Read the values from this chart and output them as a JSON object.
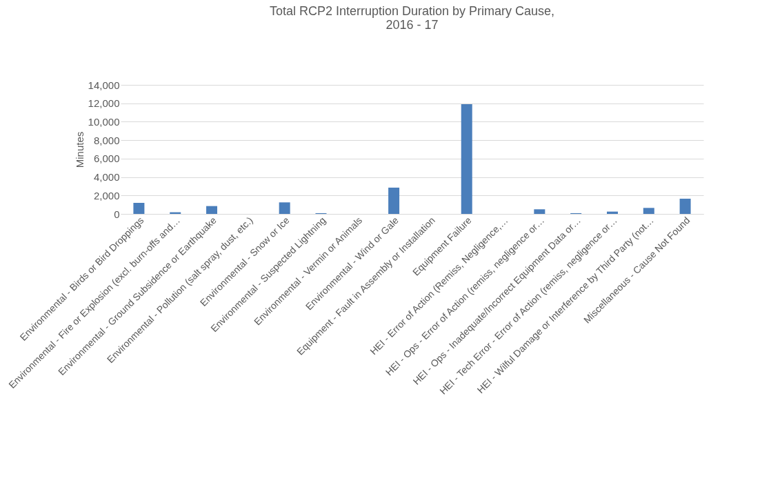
{
  "chart_data": {
    "type": "bar",
    "title": [
      "Total RCP2 Interruption Duration by Primary Cause,",
      "2016 - 17"
    ],
    "ylabel": "Minutes",
    "categories": [
      "Environmental - Birds or Bird Droppings",
      "Environmental - Fire or Explosion (excl. burn-offs and…",
      "Environmental - Ground Subsidence or Earthquake",
      "Environmental - Pollution  (salt spray, dust, etc.)",
      "Environmental - Snow or Ice",
      "Environmental - Suspected Lightning",
      "Environmental - Vermin or Animals",
      "Environmental - Wind or Gale",
      "Equipment - Fault in Assembly or Installation",
      "Equipment Failure",
      "HEI - Error of Action (Remiss, Negligence,…",
      "HEI - Ops - Error of Action (remiss, negligence or…",
      "HEI - Ops - Inadequate/Incorrect Equipment Data or…",
      "HEI - Tech Error - Error of Action (remiss, negligence or…",
      "HEI - Wilful Damage or Interference by Third Party (not…",
      "Miscellaneous - Cause Not Found"
    ],
    "values": [
      1200,
      180,
      850,
      0,
      1250,
      80,
      0,
      2850,
      0,
      11900,
      0,
      500,
      80,
      250,
      650,
      1650
    ],
    "color": "#4a7ebb",
    "ylim": [
      0,
      14000
    ],
    "yticks": [
      0,
      {
        "value": 2000,
        "label": "2,000"
      },
      {
        "value": 4000,
        "label": "4,000"
      },
      {
        "value": 6000,
        "label": "6,000"
      },
      {
        "value": 8000,
        "label": "8,000"
      },
      {
        "value": 10000,
        "label": "10,000"
      },
      {
        "value": 12000,
        "label": "12,000"
      },
      {
        "value": 14000,
        "label": "14,000"
      }
    ],
    "grid": "y"
  }
}
